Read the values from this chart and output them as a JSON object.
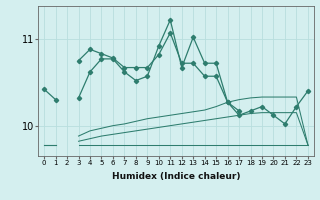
{
  "xlabel": "Humidex (Indice chaleur)",
  "x": [
    0,
    1,
    2,
    3,
    4,
    5,
    6,
    7,
    8,
    9,
    10,
    11,
    12,
    13,
    14,
    15,
    16,
    17,
    18,
    19,
    20,
    21,
    22,
    23
  ],
  "line1": [
    10.42,
    10.3,
    null,
    10.75,
    10.88,
    10.83,
    10.78,
    10.67,
    10.67,
    10.67,
    10.82,
    11.07,
    10.72,
    10.72,
    10.57,
    10.57,
    10.27,
    10.12,
    10.17,
    10.22,
    10.12,
    10.02,
    10.22,
    10.4
  ],
  "line2": [
    null,
    null,
    null,
    10.32,
    10.62,
    10.77,
    10.77,
    10.62,
    10.52,
    10.57,
    10.92,
    11.22,
    10.67,
    11.02,
    10.72,
    10.72,
    10.27,
    10.17,
    null,
    null,
    null,
    null,
    null,
    null
  ],
  "line3": [
    9.78,
    9.78,
    null,
    9.78,
    9.78,
    9.78,
    9.78,
    9.78,
    9.78,
    9.78,
    9.78,
    9.78,
    9.78,
    9.78,
    9.78,
    9.78,
    9.78,
    9.78,
    9.78,
    9.78,
    9.78,
    9.78,
    9.78,
    9.78
  ],
  "line4": [
    9.78,
    9.78,
    null,
    9.82,
    9.85,
    9.88,
    9.9,
    9.92,
    9.94,
    9.96,
    9.98,
    10.0,
    10.02,
    10.04,
    10.06,
    10.08,
    10.1,
    10.12,
    10.14,
    10.15,
    10.15,
    10.15,
    10.15,
    9.78
  ],
  "line5": [
    9.78,
    9.78,
    null,
    9.88,
    9.94,
    9.97,
    10.0,
    10.02,
    10.05,
    10.08,
    10.1,
    10.12,
    10.14,
    10.16,
    10.18,
    10.22,
    10.27,
    10.3,
    10.32,
    10.33,
    10.33,
    10.33,
    10.33,
    9.78
  ],
  "color": "#2e7d6e",
  "bg_color": "#d4efef",
  "grid_color": "#b8dede",
  "ylim": [
    9.65,
    11.38
  ],
  "yticks": [
    10,
    11
  ],
  "xticks": [
    0,
    1,
    2,
    3,
    4,
    5,
    6,
    7,
    8,
    9,
    10,
    11,
    12,
    13,
    14,
    15,
    16,
    17,
    18,
    19,
    20,
    21,
    22,
    23
  ]
}
